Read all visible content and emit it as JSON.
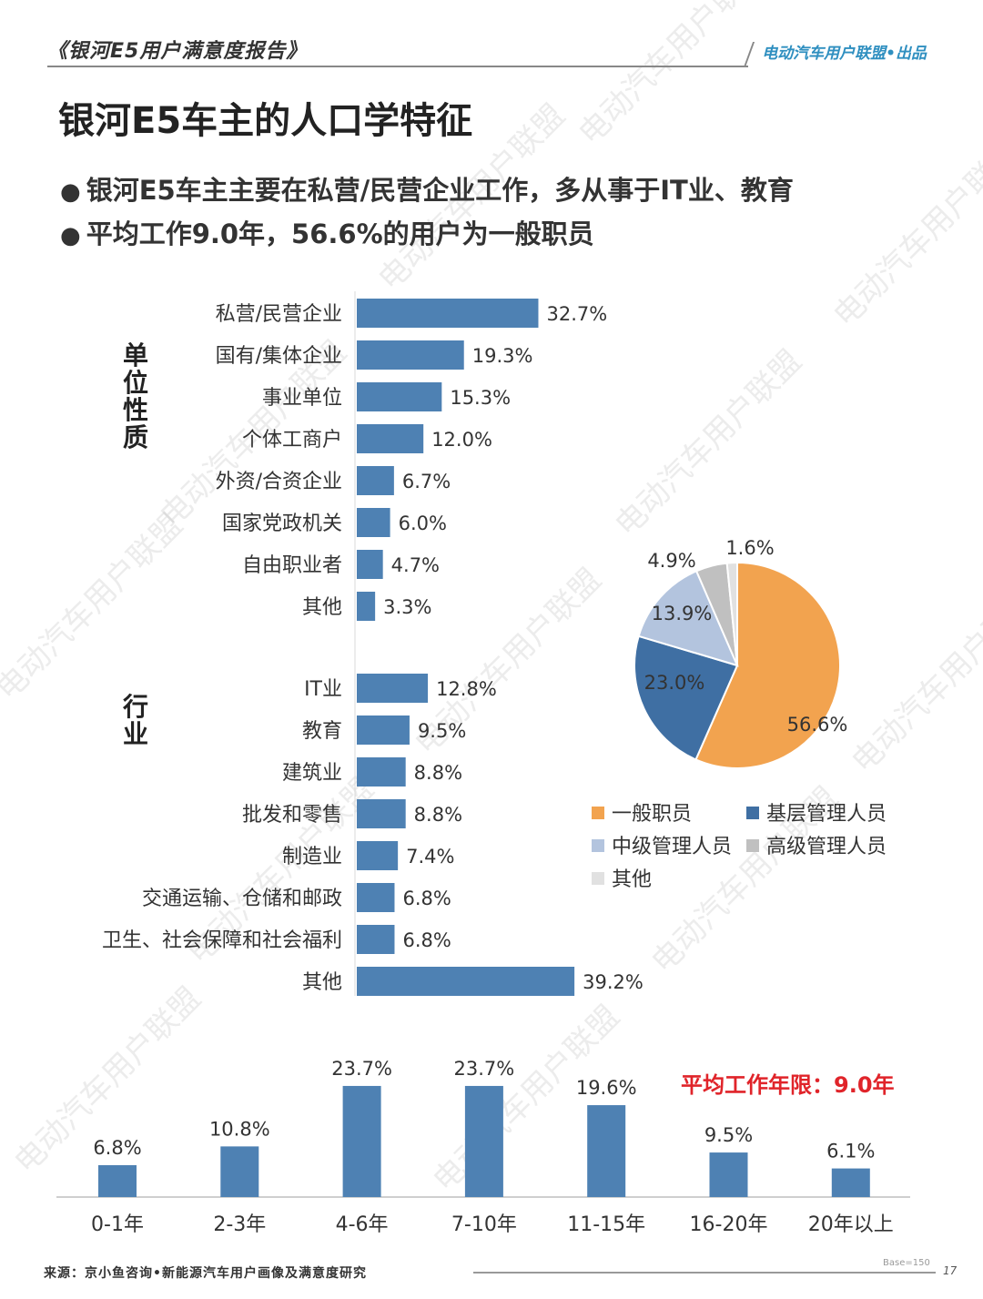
{
  "header": {
    "report_title": "《银河E5用户满意度报告》",
    "brand": "电动汽车用户联盟•出品"
  },
  "title": "银河E5车主的人口学特征",
  "bullets": [
    "银河E5车主主要在私营/民营企业工作，多从事于IT业、教育",
    "平均工作9.0年，56.6%的用户为一般职员"
  ],
  "watermark": "电动汽车用户联盟",
  "footer": {
    "source": "来源：京小鱼咨询•新能源汽车用户画像及满意度研究",
    "base": "Base=150",
    "page": "17"
  },
  "colors": {
    "bar": "#4e81b3",
    "orange": "#f2a34f",
    "blue": "#3f6fa3",
    "light_blue": "#b3c4de",
    "gray": "#c0c0c0",
    "light_gray": "#e1e1e1",
    "red": "#e0242a"
  },
  "chart_data": [
    {
      "type": "bar",
      "orientation": "horizontal",
      "group_label": "单位性质",
      "categories": [
        "私营/民营企业",
        "国有/集体企业",
        "事业单位",
        "个体工商户",
        "外资/合资企业",
        "国家党政机关",
        "自由职业者",
        "其他"
      ],
      "values": [
        32.7,
        19.3,
        15.3,
        12.0,
        6.7,
        6.0,
        4.7,
        3.3
      ],
      "labels": [
        "32.7%",
        "19.3%",
        "15.3%",
        "12.0%",
        "6.7%",
        "6.0%",
        "4.7%",
        "3.3%"
      ],
      "unit": "%"
    },
    {
      "type": "bar",
      "orientation": "horizontal",
      "group_label": "行业",
      "categories": [
        "IT业",
        "教育",
        "建筑业",
        "批发和零售",
        "制造业",
        "交通运输、仓储和邮政",
        "卫生、社会保障和社会福利",
        "其他"
      ],
      "values": [
        12.8,
        9.5,
        8.8,
        8.8,
        7.4,
        6.8,
        6.8,
        39.2
      ],
      "labels": [
        "12.8%",
        "9.5%",
        "8.8%",
        "8.8%",
        "7.4%",
        "6.8%",
        "6.8%",
        "39.2%"
      ],
      "unit": "%"
    },
    {
      "type": "pie",
      "categories": [
        "一般职员",
        "基层管理人员",
        "中级管理人员",
        "高级管理人员",
        "其他"
      ],
      "values": [
        56.6,
        23.0,
        13.9,
        4.9,
        1.6
      ],
      "labels": [
        "56.6%",
        "23.0%",
        "13.9%",
        "4.9%",
        "1.6%"
      ],
      "colors": [
        "#f2a34f",
        "#3f6fa3",
        "#b3c4de",
        "#c0c0c0",
        "#e1e1e1"
      ],
      "legend": [
        "一般职员",
        "基层管理人员",
        "中级管理人员",
        "高级管理人员",
        "其他"
      ],
      "legend_position": "bottom"
    },
    {
      "type": "bar",
      "orientation": "vertical",
      "categories": [
        "0-1年",
        "2-3年",
        "4-6年",
        "7-10年",
        "11-15年",
        "16-20年",
        "20年以上"
      ],
      "values": [
        6.8,
        10.8,
        23.7,
        23.7,
        19.6,
        9.5,
        6.1
      ],
      "labels": [
        "6.8%",
        "10.8%",
        "23.7%",
        "23.7%",
        "19.6%",
        "9.5%",
        "6.1%"
      ],
      "annotation": "平均工作年限：9.0年"
    }
  ]
}
